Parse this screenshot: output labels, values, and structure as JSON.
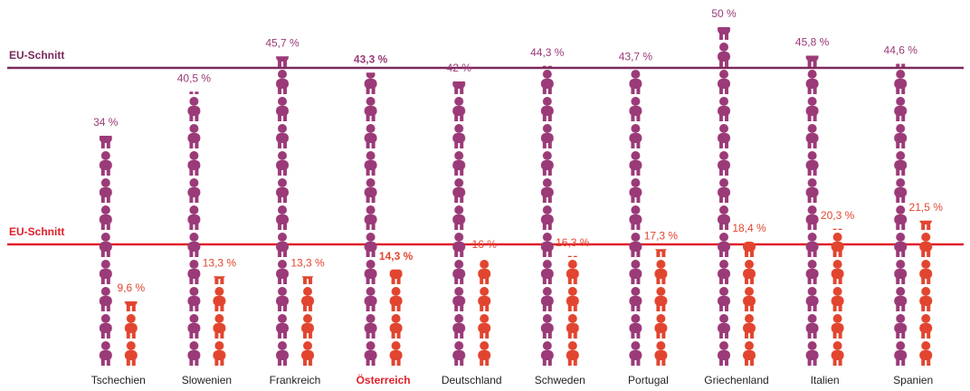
{
  "chart_data": {
    "type": "pictograph",
    "categories": [
      "Tschechien",
      "Slowenien",
      "Frankreich",
      "Österreich",
      "Deutschland",
      "Schweden",
      "Portugal",
      "Griechenland",
      "Italien",
      "Spanien"
    ],
    "series": [
      {
        "color": "#9b3a78",
        "values": [
          34,
          40.5,
          45.7,
          43.3,
          42,
          44.3,
          43.7,
          50,
          45.8,
          44.6
        ],
        "value_labels": [
          "34 %",
          "40,5 %",
          "45,7 %",
          "43,3 %",
          "42 %",
          "44,3 %",
          "43,7 %",
          "50 %",
          "45,8 %",
          "44,6 %"
        ]
      },
      {
        "color": "#e2452f",
        "values": [
          9.6,
          13.3,
          13.3,
          14.3,
          16,
          16.3,
          17.3,
          18.4,
          20.3,
          21.5
        ],
        "value_labels": [
          "9,6 %",
          "13,3 %",
          "13,3 %",
          "14,3 %",
          "16 %",
          "16,3 %",
          "17,3 %",
          "18,4 %",
          "20,3 %",
          "21,5 %"
        ]
      }
    ],
    "reference_lines": [
      {
        "label": "EU-Schnitt",
        "value": 44,
        "color": "#7a2a5c"
      },
      {
        "label": "EU-Schnitt",
        "value": 18,
        "color": "#e0202a"
      }
    ],
    "highlight_index": 3,
    "highlight_color": "#e0202a",
    "ylim": [
      0,
      54
    ]
  }
}
